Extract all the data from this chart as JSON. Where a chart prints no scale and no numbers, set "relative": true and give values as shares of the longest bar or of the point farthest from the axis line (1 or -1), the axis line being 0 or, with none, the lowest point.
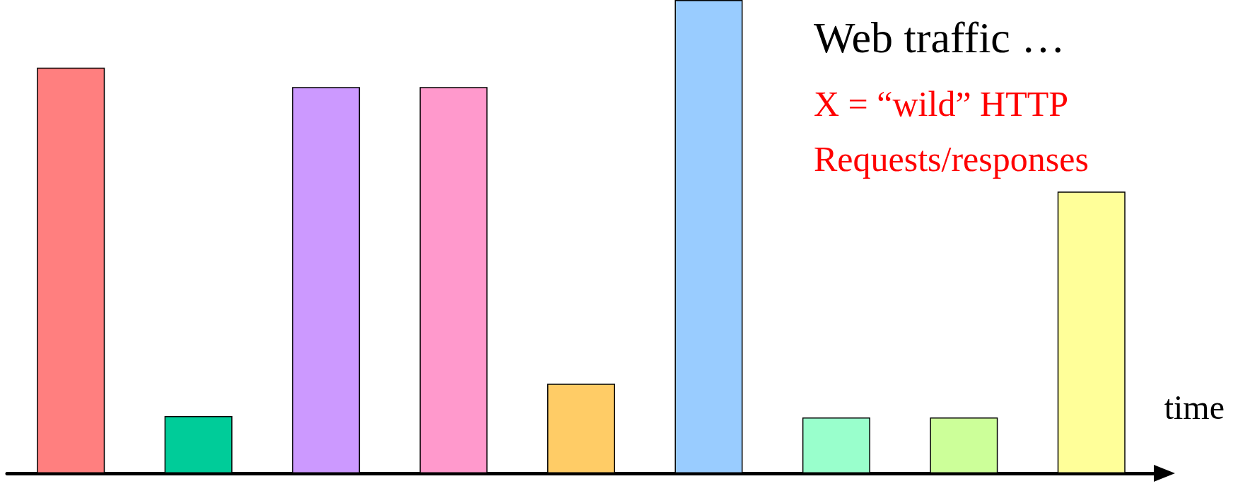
{
  "chart_data": {
    "type": "bar",
    "title": "Web traffic …",
    "annotations": [
      "X = “wild” HTTP",
      "Requests/responses"
    ],
    "xlabel": "time",
    "relative": true,
    "categories": [
      null,
      null,
      null,
      null,
      null,
      null,
      null,
      null,
      null
    ],
    "values": [
      0.857,
      0.121,
      0.816,
      0.816,
      0.189,
      1,
      0.118,
      0.118,
      0.595
    ],
    "colors": [
      "#ff7f7f",
      "#00cc99",
      "#cc99ff",
      "#ff99cc",
      "#ffcc66",
      "#99ccff",
      "#99ffcc",
      "#ccff99",
      "#ffff99"
    ],
    "line_style": "solid"
  }
}
